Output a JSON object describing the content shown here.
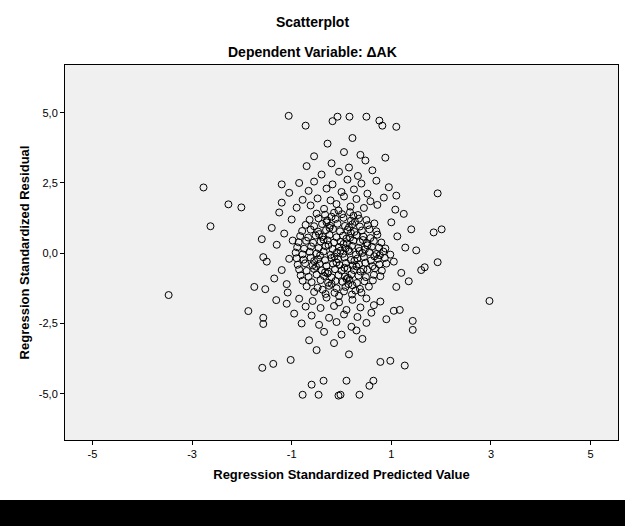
{
  "chart_data": {
    "type": "scatter",
    "title": "Scatterplot",
    "subtitle": "Dependent Variable: ΔAK",
    "x_label": "Regression Standardized Predicted Value",
    "y_label": "Regression Standardized Residual",
    "marker": "circle-open",
    "color": "#000000",
    "grid": false,
    "xlim": [
      -5.55,
      5.55
    ],
    "ylim": [
      -6.65,
      6.7
    ],
    "xticks": [
      -5,
      -3,
      -1,
      1,
      3,
      5
    ],
    "yticks": [
      {
        "value": 5,
        "label": "5,0"
      },
      {
        "value": 2.5,
        "label": "2,5"
      },
      {
        "value": 0,
        "label": "0,0"
      },
      {
        "value": -2.5,
        "label": "-2,5"
      },
      {
        "value": -5,
        "label": "-5,0"
      }
    ],
    "x": [
      -0.55,
      -0.32,
      -0.14,
      0.05,
      0.21,
      0.4,
      -0.05,
      0.28,
      -0.7,
      -0.48,
      -0.25,
      -0.1,
      0.08,
      0.22,
      0.37,
      0.55,
      -0.38,
      0.14,
      -0.78,
      -0.6,
      -0.42,
      -0.27,
      -0.12,
      0.02,
      0.16,
      0.31,
      0.46,
      0.63,
      -0.2,
      0.1,
      -0.82,
      -0.66,
      -0.5,
      -0.35,
      -0.2,
      -0.06,
      0.07,
      0.2,
      0.34,
      0.49,
      0.65,
      0.78,
      -0.28,
      0.13,
      -0.85,
      -0.7,
      -0.55,
      -0.4,
      -0.26,
      -0.13,
      0.0,
      0.12,
      0.25,
      0.38,
      0.52,
      0.67,
      0.81,
      -0.33,
      0.06,
      0.44,
      -0.88,
      -0.73,
      -0.58,
      -0.44,
      -0.3,
      -0.17,
      -0.04,
      0.09,
      0.22,
      0.35,
      0.48,
      0.62,
      0.76,
      0.9,
      -0.51,
      -0.1,
      0.3,
      -0.9,
      -0.76,
      -0.62,
      -0.47,
      -0.33,
      -0.2,
      -0.07,
      0.06,
      0.19,
      0.32,
      0.45,
      0.59,
      0.73,
      0.87,
      -0.55,
      -0.14,
      0.26,
      0.66,
      -0.92,
      -0.78,
      -0.64,
      -0.5,
      -0.36,
      -0.22,
      -0.09,
      0.03,
      0.16,
      0.29,
      0.42,
      0.56,
      0.7,
      0.84,
      -0.43,
      -0.02,
      0.36,
      0.77,
      -0.89,
      -0.75,
      -0.61,
      -0.46,
      -0.32,
      -0.18,
      -0.05,
      0.08,
      0.21,
      0.34,
      0.47,
      0.61,
      0.75,
      0.88,
      -0.26,
      0.14,
      0.52,
      -0.86,
      -0.71,
      -0.57,
      -0.42,
      -0.28,
      -0.15,
      -0.02,
      0.11,
      0.24,
      0.37,
      0.51,
      0.65,
      0.8,
      -0.36,
      0.04,
      0.43,
      -0.83,
      -0.67,
      -0.52,
      -0.38,
      -0.24,
      -0.1,
      0.03,
      0.17,
      0.3,
      0.44,
      0.58,
      0.72,
      -0.45,
      0.1,
      -0.79,
      -0.62,
      -0.47,
      -0.31,
      -0.17,
      -0.03,
      0.12,
      0.26,
      0.41,
      0.56,
      0.7,
      -0.24,
      0.19,
      -0.72,
      -0.55,
      -0.39,
      -0.23,
      -0.08,
      0.07,
      0.22,
      0.37,
      0.53,
      0.66,
      -0.3,
      0.15,
      -0.64,
      -0.46,
      -0.29,
      -0.12,
      0.04,
      0.19,
      0.35,
      0.5,
      -0.2,
      0.27,
      -0.5,
      -0.33,
      -0.15,
      0.01,
      0.17,
      0.33,
      -0.06,
      0.24,
      -0.9,
      -0.62,
      -0.35,
      -0.1,
      0.18,
      0.45,
      0.72,
      -0.78,
      -0.48,
      -0.22,
      0.05,
      0.3,
      0.58,
      0.85,
      -1.05,
      -0.66,
      -0.3,
      0.0,
      0.25,
      0.52,
      0.95,
      -0.85,
      -0.55,
      -0.18,
      0.12,
      0.4,
      0.7,
      -0.4,
      -0.05,
      0.33,
      0.62,
      -0.7,
      -0.2,
      0.15,
      0.48,
      -1.2,
      1.1,
      -0.55,
      0.05,
      0.38,
      0.88,
      -0.28,
      0.22,
      -0.85,
      -0.58,
      -0.3,
      -0.05,
      0.22,
      0.5,
      0.78,
      -0.72,
      -0.42,
      -0.15,
      0.1,
      0.38,
      0.65,
      -0.95,
      -0.6,
      -0.25,
      0.05,
      0.32,
      0.6,
      0.9,
      -0.8,
      -0.45,
      -0.1,
      0.2,
      0.5,
      -0.35,
      0.0,
      0.3,
      -0.65,
      -0.15,
      0.42,
      -1.1,
      1.05,
      -0.5,
      0.15,
      -1.0,
      -1.15,
      -1.3,
      -1.05,
      -1.2,
      -1.4,
      -1.1,
      -0.98,
      -1.25,
      -1.5,
      -1.08,
      -1.35,
      1.0,
      1.12,
      1.28,
      1.05,
      1.2,
      1.4,
      1.1,
      0.98,
      1.25,
      1.5,
      1.08,
      1.35,
      1.6,
      -1.6,
      -3.47,
      2.97,
      -2.77,
      -2.63,
      -2.27,
      -2.01,
      -1.75,
      -1.87,
      -1.06,
      -0.08,
      0.16,
      0.5,
      0.76,
      1.1,
      0.82,
      -0.18,
      -0.72,
      -0.78,
      -0.46,
      -0.06,
      -0.02,
      0.36,
      -0.6,
      -0.36,
      0.1,
      0.56,
      0.64,
      -1.59,
      -1.37,
      -1.02,
      0.78,
      0.98,
      1.27,
      2.01,
      1.85,
      1.93,
      1.67,
      1.43,
      1.43,
      1.17,
      1.93,
      -1.57,
      -1.53,
      -1.57,
      -1.57,
      -1.31,
      -1.2
    ],
    "values": [
      -1.38,
      -1.45,
      -1.41,
      -1.36,
      -1.47,
      -1.4,
      -1.52,
      -1.33,
      -1.18,
      -1.23,
      -1.16,
      -1.25,
      -1.2,
      -1.14,
      -1.27,
      -1.19,
      -1.3,
      -1.1,
      -0.98,
      -1.03,
      -0.96,
      -1.05,
      -0.99,
      -1.02,
      -0.95,
      -1.06,
      -1.0,
      -0.97,
      -1.09,
      -0.92,
      -0.79,
      -0.84,
      -0.76,
      -0.81,
      -0.86,
      -0.78,
      -0.83,
      -0.75,
      -0.8,
      -0.85,
      -0.77,
      -0.82,
      -0.72,
      -0.88,
      -0.58,
      -0.63,
      -0.56,
      -0.61,
      -0.66,
      -0.57,
      -0.62,
      -0.55,
      -0.6,
      -0.65,
      -0.59,
      -0.54,
      -0.62,
      -0.68,
      -0.52,
      -0.57,
      -0.41,
      -0.36,
      -0.43,
      -0.38,
      -0.45,
      -0.37,
      -0.42,
      -0.35,
      -0.44,
      -0.39,
      -0.34,
      -0.46,
      -0.4,
      -0.37,
      -0.48,
      -0.33,
      -0.47,
      -0.18,
      -0.23,
      -0.16,
      -0.21,
      -0.25,
      -0.17,
      -0.22,
      -0.15,
      -0.24,
      -0.19,
      -0.14,
      -0.26,
      -0.2,
      -0.17,
      -0.28,
      -0.12,
      -0.27,
      -0.11,
      0.02,
      -0.04,
      0.05,
      -0.01,
      0.06,
      -0.06,
      0.03,
      -0.02,
      0.07,
      -0.05,
      0.01,
      0.04,
      -0.03,
      0.06,
      -0.08,
      0.09,
      0.08,
      -0.07,
      0.21,
      0.16,
      0.24,
      0.18,
      0.25,
      0.15,
      0.22,
      0.17,
      0.26,
      0.19,
      0.14,
      0.23,
      0.2,
      0.17,
      0.29,
      0.12,
      0.28,
      0.39,
      0.44,
      0.37,
      0.42,
      0.46,
      0.38,
      0.41,
      0.35,
      0.45,
      0.4,
      0.36,
      0.43,
      0.38,
      0.48,
      0.33,
      0.47,
      0.61,
      0.56,
      0.63,
      0.58,
      0.65,
      0.57,
      0.62,
      0.55,
      0.64,
      0.59,
      0.54,
      0.66,
      0.68,
      0.52,
      0.79,
      0.84,
      0.77,
      0.82,
      0.86,
      0.78,
      0.83,
      0.76,
      0.81,
      0.85,
      0.78,
      0.9,
      0.72,
      1.01,
      0.96,
      1.04,
      0.98,
      1.05,
      0.97,
      1.03,
      0.95,
      1.0,
      1.06,
      1.1,
      0.92,
      1.19,
      1.24,
      1.17,
      1.22,
      1.26,
      1.16,
      1.23,
      1.18,
      1.3,
      1.12,
      1.41,
      1.37,
      1.44,
      1.39,
      1.46,
      1.36,
      1.52,
      1.33,
      1.62,
      1.7,
      1.58,
      1.75,
      1.66,
      1.61,
      1.72,
      1.9,
      1.95,
      1.88,
      2.02,
      1.93,
      1.85,
      1.98,
      2.15,
      2.22,
      2.3,
      2.18,
      2.27,
      2.12,
      2.35,
      2.5,
      2.55,
      2.45,
      2.62,
      2.48,
      2.58,
      2.8,
      2.9,
      2.75,
      2.95,
      3.1,
      3.2,
      3.05,
      3.3,
      1.8,
      2.05,
      3.45,
      3.6,
      3.5,
      3.4,
      3.9,
      4.1,
      -1.62,
      -1.7,
      -1.58,
      -1.75,
      -1.66,
      -1.61,
      -1.72,
      -1.9,
      -1.95,
      -1.88,
      -2.02,
      -1.93,
      -1.85,
      -2.15,
      -2.22,
      -2.3,
      -2.18,
      -2.27,
      -2.12,
      -2.35,
      -2.5,
      -2.55,
      -2.45,
      -2.62,
      -2.48,
      -2.8,
      -2.9,
      -2.75,
      -3.1,
      -3.2,
      -3.05,
      -1.8,
      -2.05,
      -3.45,
      -3.6,
      1.2,
      0.7,
      0.3,
      -0.2,
      -0.6,
      0.9,
      -1.1,
      0.45,
      1.45,
      -0.3,
      -1.4,
      -0.9,
      1.1,
      0.6,
      0.2,
      -0.3,
      -0.7,
      0.85,
      -1.2,
      -0.05,
      1.4,
      0.1,
      1.55,
      -1.0,
      -0.6,
      0.5,
      -1.49,
      -1.7,
      2.34,
      0.96,
      1.74,
      1.63,
      -1.2,
      -2.06,
      4.89,
      4.86,
      4.86,
      4.86,
      4.72,
      4.5,
      4.54,
      4.7,
      4.54,
      -5.04,
      -5.04,
      -5.07,
      -5.04,
      -5.04,
      -4.68,
      -4.54,
      -4.54,
      -4.72,
      -4.54,
      -4.08,
      -3.94,
      -3.8,
      -3.87,
      -3.83,
      -4.0,
      0.85,
      0.74,
      -0.32,
      -0.5,
      -2.41,
      -2.73,
      -2.02,
      2.13,
      -0.14,
      -1.28,
      -2.52,
      -2.3,
      -1.67,
      2.45
    ]
  }
}
